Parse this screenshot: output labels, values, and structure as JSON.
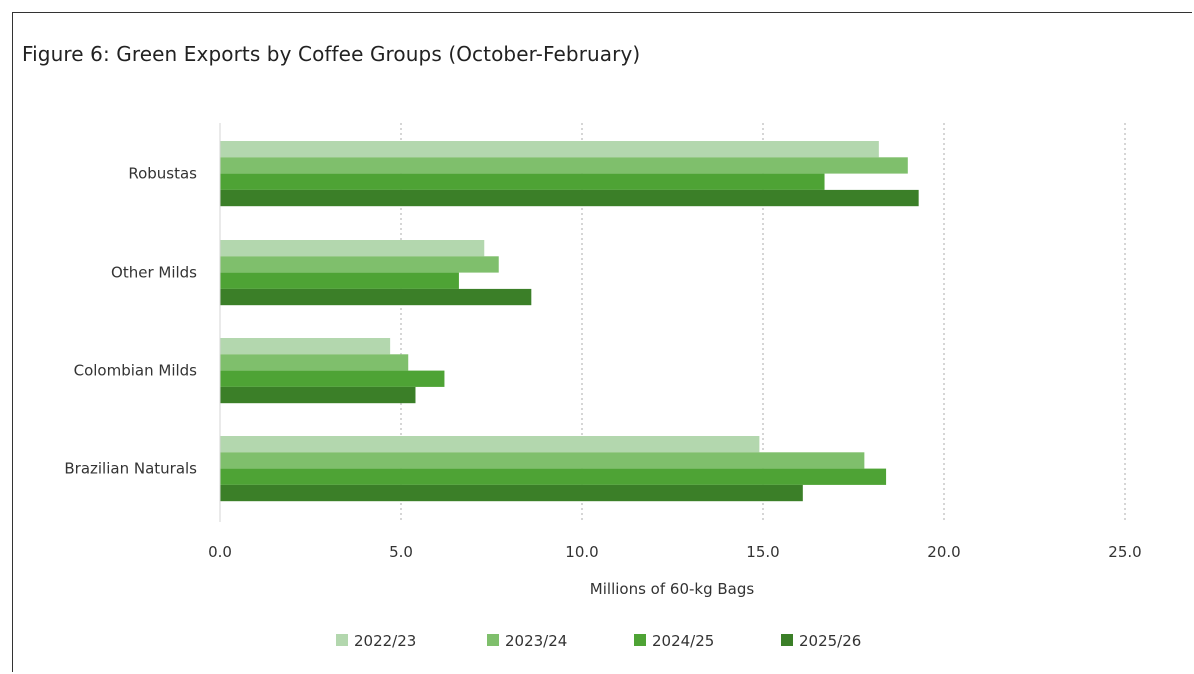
{
  "chart_data": {
    "type": "bar",
    "orientation": "horizontal",
    "title": "Figure 6: Green Exports by Coffee Groups (October-February)",
    "xlabel": "Millions of 60-kg Bags",
    "ylabel": "",
    "categories": [
      "Robustas",
      "Other Milds",
      "Colombian Milds",
      "Brazilian Naturals"
    ],
    "series": [
      {
        "name": "2022/23",
        "color": "#b3d7ae",
        "values": [
          18.2,
          7.3,
          4.7,
          14.9
        ]
      },
      {
        "name": "2023/24",
        "color": "#7fbf6c",
        "values": [
          19.0,
          7.7,
          5.2,
          17.8
        ]
      },
      {
        "name": "2024/25",
        "color": "#4ea335",
        "values": [
          16.7,
          6.6,
          6.2,
          18.4
        ]
      },
      {
        "name": "2025/26",
        "color": "#3b7f28",
        "values": [
          19.3,
          8.6,
          5.4,
          16.1
        ]
      }
    ],
    "xlim": [
      0,
      25
    ],
    "xticks": [
      0,
      5,
      10,
      15,
      20,
      25
    ],
    "xtick_labels": [
      "0.0",
      "5.0",
      "10.0",
      "15.0",
      "20.0",
      "25.0"
    ],
    "grid": "vertical dotted",
    "legend_position": "bottom"
  }
}
